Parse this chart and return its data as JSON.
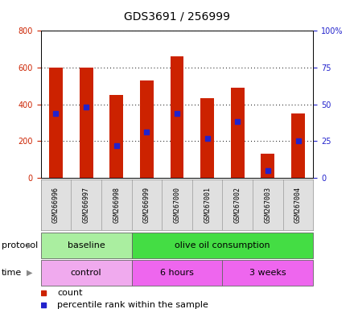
{
  "title": "GDS3691 / 256999",
  "samples": [
    "GSM266996",
    "GSM266997",
    "GSM266998",
    "GSM266999",
    "GSM267000",
    "GSM267001",
    "GSM267002",
    "GSM267003",
    "GSM267004"
  ],
  "counts": [
    600,
    600,
    450,
    530,
    660,
    435,
    490,
    130,
    350
  ],
  "percentile_ranks": [
    44,
    48,
    22,
    31,
    44,
    27,
    38,
    5,
    25
  ],
  "ylim_left": [
    0,
    800
  ],
  "ylim_right": [
    0,
    100
  ],
  "yticks_left": [
    0,
    200,
    400,
    600,
    800
  ],
  "yticks_right": [
    0,
    25,
    50,
    75,
    100
  ],
  "yticklabels_right": [
    "0",
    "25",
    "50",
    "75",
    "100%"
  ],
  "bar_color": "#cc2200",
  "marker_color": "#2222cc",
  "protocol_groups": [
    {
      "label": "baseline",
      "start": 0,
      "end": 3,
      "color": "#aaeea0"
    },
    {
      "label": "olive oil consumption",
      "start": 3,
      "end": 9,
      "color": "#44dd44"
    }
  ],
  "time_groups": [
    {
      "label": "control",
      "start": 0,
      "end": 3,
      "color": "#f0aaee"
    },
    {
      "label": "6 hours",
      "start": 3,
      "end": 6,
      "color": "#ee66ee"
    },
    {
      "label": "3 weeks",
      "start": 6,
      "end": 9,
      "color": "#ee66ee"
    }
  ],
  "legend_count_label": "count",
  "legend_pct_label": "percentile rank within the sample",
  "left_tick_color": "#cc2200",
  "right_tick_color": "#2222cc",
  "title_fontsize": 10,
  "tick_fontsize": 7,
  "label_fontsize": 8,
  "bar_width": 0.45
}
